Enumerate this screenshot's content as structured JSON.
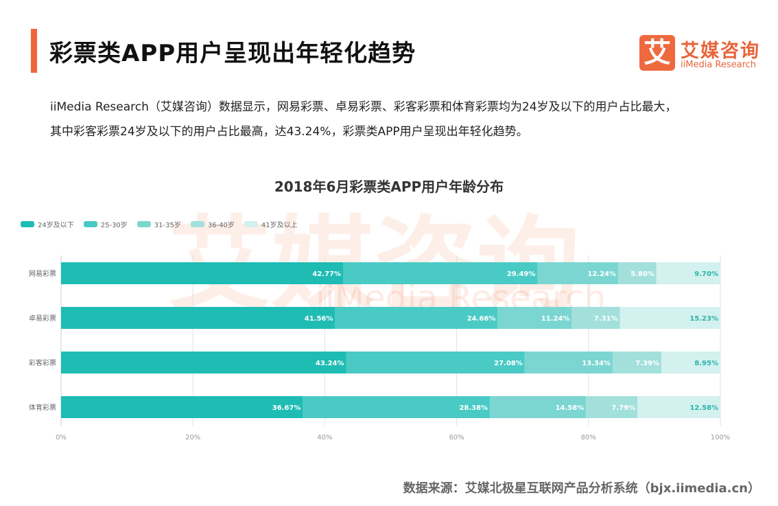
{
  "header": {
    "title": "彩票类APP用户呈现出年轻化趋势",
    "logo_icon_char": "艾",
    "logo_cn": "艾媒咨询",
    "logo_en": "iiMedia Research"
  },
  "description": [
    "iiMedia Research（艾媒咨询）数据显示，网易彩票、卓易彩票、彩客彩票和体育彩票均为24岁及以下的用户占比最大，",
    "其中彩客彩票24岁及以下的用户占比最高，达43.24%，彩票类APP用户呈现出年轻化趋势。"
  ],
  "watermark": {
    "cn": "艾媒咨询",
    "en": "iiMedia Research"
  },
  "source": "数据来源：艾媒北极星互联网产品分析系统（bjx.iimedia.cn）",
  "chart_data": {
    "type": "bar",
    "orientation": "horizontal",
    "stacked": true,
    "title": "2018年6月彩票类APP用户年龄分布",
    "categories": [
      "网易彩票",
      "卓易彩票",
      "彩客彩票",
      "体育彩票"
    ],
    "series": [
      {
        "name": "24岁及以下",
        "color": "#1fbcb4",
        "values": [
          42.77,
          41.56,
          43.24,
          36.67
        ]
      },
      {
        "name": "25-30岁",
        "color": "#4acac5",
        "values": [
          29.49,
          24.66,
          27.08,
          28.38
        ]
      },
      {
        "name": "31-35岁",
        "color": "#7bd6d2",
        "values": [
          12.24,
          11.24,
          13.34,
          14.58
        ]
      },
      {
        "name": "36-40岁",
        "color": "#a3e0dc",
        "values": [
          5.8,
          7.31,
          7.39,
          7.79
        ]
      },
      {
        "name": "41岁及以上",
        "color": "#d3f1ee",
        "values": [
          9.7,
          15.23,
          8.95,
          12.58
        ]
      }
    ],
    "xlim": [
      0,
      100
    ],
    "xticks": [
      "0%",
      "20%",
      "40%",
      "60%",
      "80%",
      "100%"
    ],
    "grid": true,
    "legend": "top-left"
  }
}
